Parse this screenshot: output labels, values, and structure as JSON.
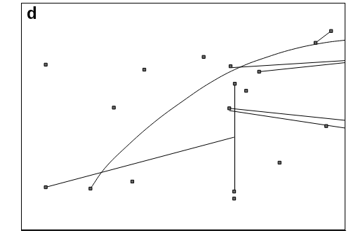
{
  "chart_data": {
    "type": "scatter",
    "title": "d",
    "xlim": [
      0,
      100
    ],
    "ylim": [
      0,
      100
    ],
    "tick_labels": false,
    "grid": false,
    "series": [
      {
        "type": "scatter",
        "color": "#000000",
        "marker": "square",
        "x": [
          7.6,
          38.0,
          56.3,
          64.6,
          73.4,
          69.4,
          28.6,
          64.2,
          94.1,
          79.7,
          34.3,
          7.6,
          21.4,
          65.7,
          65.7,
          65.9,
          90.8,
          95.6
        ],
        "values": [
          72.8,
          70.6,
          76.2,
          72.1,
          69.7,
          61.3,
          53.9,
          53.6,
          45.8,
          29.7,
          21.4,
          18.9,
          18.3,
          17.0,
          13.9,
          64.4,
          82.4,
          87.6
        ]
      },
      {
        "type": "line",
        "color": "#000000",
        "line_style": "solid",
        "x": [
          7.6,
          65.7
        ],
        "values": [
          18.9,
          40.9
        ]
      },
      {
        "type": "line",
        "color": "#000000",
        "line_style": "solid",
        "x": [
          65.9,
          65.9
        ],
        "values": [
          64.4,
          17.0
        ]
      },
      {
        "type": "line",
        "color": "#000000",
        "line_style": "smooth",
        "x": [
          21.4,
          25.8,
          32.3,
          41.0,
          49.8,
          58.5,
          67.2,
          76.0,
          84.7,
          93.4,
          100
        ],
        "values": [
          18.3,
          27.2,
          36.5,
          47.4,
          56.7,
          65.0,
          71.5,
          76.2,
          79.9,
          82.4,
          83.6
        ]
      },
      {
        "type": "line",
        "color": "#000000",
        "line_style": "solid",
        "x": [
          90.8,
          95.6
        ],
        "values": [
          82.4,
          87.6
        ]
      },
      {
        "type": "line",
        "color": "#000000",
        "line_style": "solid",
        "x": [
          65.1,
          100
        ],
        "values": [
          71.5,
          74.6
        ]
      },
      {
        "type": "line",
        "color": "#000000",
        "line_style": "solid",
        "x": [
          73.4,
          100
        ],
        "values": [
          69.7,
          73.7
        ]
      },
      {
        "type": "line",
        "color": "#000000",
        "line_style": "solid",
        "x": [
          64.2,
          100
        ],
        "values": [
          53.6,
          48.3
        ]
      },
      {
        "type": "line",
        "color": "#000000",
        "line_style": "solid",
        "x": [
          64.2,
          100
        ],
        "values": [
          52.6,
          44.9
        ]
      }
    ]
  }
}
